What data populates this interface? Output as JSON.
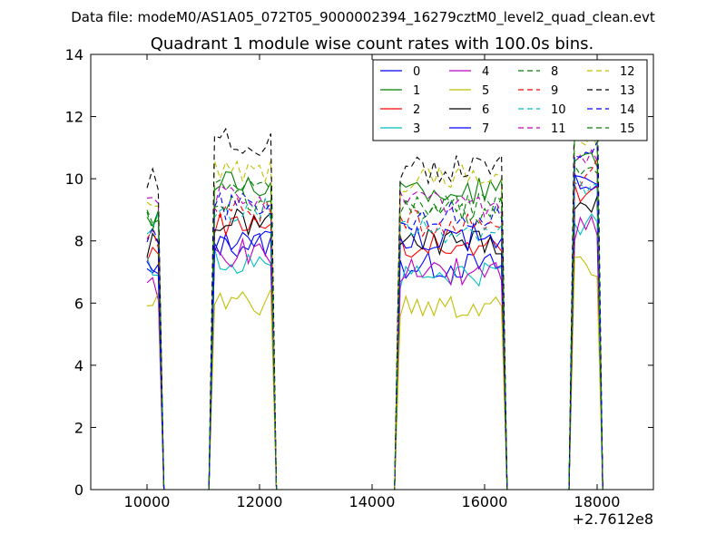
{
  "chart_data": {
    "type": "line",
    "suptitle": "Data file: modeM0/AS1A05_072T05_9000002394_16279cztM0_level2_quad_clean.evt",
    "title": "Quadrant 1 module wise count rates with 100.0s bins.",
    "xlabel": "",
    "ylabel": "",
    "xlim": [
      9000,
      19000
    ],
    "ylim": [
      0,
      14
    ],
    "x_offset_label": "+2.7612e8",
    "xticks": [
      10000,
      12000,
      14000,
      16000,
      18000
    ],
    "xtick_labels": [
      "10000",
      "12000",
      "14000",
      "16000",
      "18000"
    ],
    "yticks": [
      0,
      2,
      4,
      6,
      8,
      10,
      12,
      14
    ],
    "ytick_labels": [
      "0",
      "2",
      "4",
      "6",
      "8",
      "10",
      "12",
      "14"
    ],
    "grid": false,
    "legend_position": "top-right",
    "legend_ncol": 4,
    "segments": [
      {
        "start": 10000,
        "end": 10200
      },
      {
        "start": 11150,
        "end": 12250
      },
      {
        "start": 14450,
        "end": 16350
      },
      {
        "start": 17550,
        "end": 18050
      }
    ],
    "series": [
      {
        "name": "0",
        "color": "#0000ff",
        "dashed": false,
        "segment_levels": [
          6.9,
          7.9,
          7.2,
          10.0
        ]
      },
      {
        "name": "1",
        "color": "#008000",
        "dashed": false,
        "segment_levels": [
          8.8,
          9.8,
          9.6,
          10.8
        ]
      },
      {
        "name": "2",
        "color": "#ff0000",
        "dashed": false,
        "segment_levels": [
          7.6,
          8.6,
          7.8,
          9.5
        ]
      },
      {
        "name": "3",
        "color": "#00bfbf",
        "dashed": false,
        "segment_levels": [
          7.1,
          7.4,
          6.9,
          8.6
        ]
      },
      {
        "name": "4",
        "color": "#bf00bf",
        "dashed": false,
        "segment_levels": [
          6.5,
          7.6,
          7.0,
          8.4
        ]
      },
      {
        "name": "5",
        "color": "#bfbf00",
        "dashed": false,
        "segment_levels": [
          6.0,
          6.0,
          5.8,
          7.3
        ]
      },
      {
        "name": "6",
        "color": "#000000",
        "dashed": false,
        "segment_levels": [
          7.8,
          8.6,
          8.0,
          9.2
        ]
      },
      {
        "name": "7",
        "color": "#0000ff",
        "dashed": false,
        "segment_levels": [
          7.0,
          8.1,
          8.1,
          9.8
        ]
      },
      {
        "name": "8",
        "color": "#008000",
        "dashed": true,
        "segment_levels": [
          8.9,
          9.6,
          9.1,
          10.4
        ]
      },
      {
        "name": "9",
        "color": "#ff0000",
        "dashed": true,
        "segment_levels": [
          8.2,
          9.0,
          8.6,
          10.2
        ]
      },
      {
        "name": "10",
        "color": "#00bfbf",
        "dashed": true,
        "segment_levels": [
          8.6,
          8.9,
          8.3,
          9.6
        ]
      },
      {
        "name": "11",
        "color": "#bf00bf",
        "dashed": true,
        "segment_levels": [
          9.1,
          9.4,
          9.2,
          10.6
        ]
      },
      {
        "name": "12",
        "color": "#bfbf00",
        "dashed": true,
        "segment_levels": [
          9.2,
          10.2,
          10.0,
          11.2
        ]
      },
      {
        "name": "13",
        "color": "#000000",
        "dashed": true,
        "segment_levels": [
          9.9,
          11.2,
          10.3,
          12.6
        ]
      },
      {
        "name": "14",
        "color": "#0000ff",
        "dashed": true,
        "segment_levels": [
          8.4,
          9.1,
          8.8,
          11.0
        ]
      },
      {
        "name": "15",
        "color": "#008000",
        "dashed": true,
        "segment_levels": [
          8.7,
          9.3,
          9.0,
          11.4
        ]
      }
    ]
  }
}
